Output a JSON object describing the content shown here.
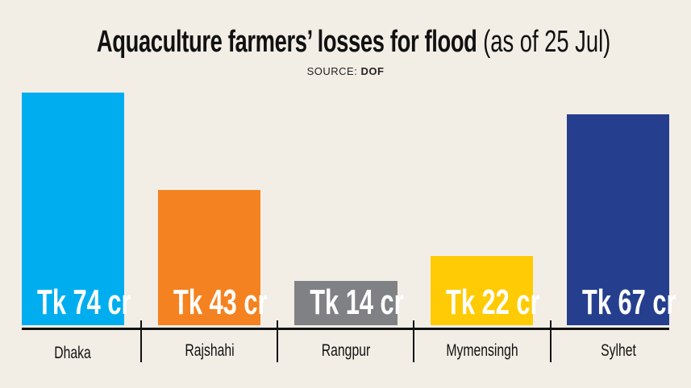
{
  "chart_data": {
    "type": "bar",
    "title": "Aquaculture farmers’ losses for flood",
    "subtitle": "(as of 25 Jul)",
    "source_label": "SOURCE:",
    "source_value": "DOF",
    "categories": [
      "Dhaka",
      "Rajshahi",
      "Rangpur",
      "Mymensingh",
      "Sylhet"
    ],
    "values": [
      74,
      43,
      14,
      22,
      67
    ],
    "value_labels": [
      "Tk 74 cr",
      "Tk 43 cr",
      "Tk 14 cr",
      "Tk 22 cr",
      "Tk 67 cr"
    ],
    "unit": "Tk crore",
    "colors": [
      "#00aeef",
      "#f58220",
      "#808184",
      "#ffcb05",
      "#253f8e"
    ],
    "xlabel": "",
    "ylabel": "",
    "grid": false,
    "legend": null
  }
}
